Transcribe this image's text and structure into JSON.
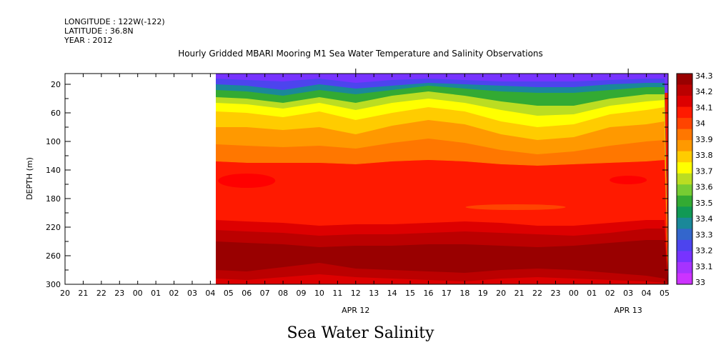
{
  "header": {
    "longitude": "LONGITUDE : 122W(-122)",
    "latitude": "LATITUDE : 36.8N",
    "year": "YEAR : 2012"
  },
  "chart_data": {
    "type": "heatmap",
    "title": "Hourly Gridded MBARI Mooring M1 Sea Water Temperature and Salinity Observations",
    "bottom_title": "Sea Water Salinity",
    "ylabel": "DEPTH (m)",
    "xlabel": "",
    "x_tick_labels": [
      "20",
      "21",
      "22",
      "23",
      "00",
      "01",
      "02",
      "03",
      "04",
      "05",
      "06",
      "07",
      "08",
      "09",
      "10",
      "11",
      "12",
      "13",
      "14",
      "15",
      "16",
      "17",
      "18",
      "19",
      "20",
      "21",
      "22",
      "23",
      "00",
      "01",
      "02",
      "03",
      "04",
      "05"
    ],
    "x_date_labels": [
      {
        "label": "APR 12",
        "at_hour_index": 16
      },
      {
        "label": "APR 13",
        "at_hour_index": 31
      }
    ],
    "y_ticks": [
      20,
      60,
      100,
      140,
      180,
      220,
      260,
      300
    ],
    "ylim": [
      300,
      5
    ],
    "data_start_hour_index": 8.3,
    "colorbar": {
      "levels": [
        33,
        33.1,
        33.2,
        33.3,
        33.4,
        33.5,
        33.6,
        33.7,
        33.8,
        33.9,
        34,
        34.1,
        34.2,
        34.3
      ],
      "labels": [
        "33",
        "33.1",
        "33.2",
        "33.3",
        "33.4",
        "33.5",
        "33.6",
        "33.7",
        "33.8",
        "33.9",
        "34",
        "34.1",
        "34.2",
        "34.3"
      ],
      "colors": [
        "#cc33ff",
        "#a633ff",
        "#7733ff",
        "#4d44ee",
        "#3366cc",
        "#1a8899",
        "#119955",
        "#33aa33",
        "#77cc33",
        "#bbdd22",
        "#ffff00",
        "#ffcc00",
        "#ff9900",
        "#ff7700",
        "#ff4400",
        "#ff1a00",
        "#dd0000",
        "#bb0000",
        "#990000"
      ]
    },
    "contours_depth_m": [
      {
        "level": 33.2,
        "x": [
          8.3,
          10,
          12,
          14,
          16,
          18,
          20,
          22,
          24,
          26,
          28,
          30,
          32,
          33
        ],
        "depth": [
          12,
          14,
          16,
          12,
          18,
          14,
          12,
          14,
          16,
          16,
          16,
          14,
          12,
          12
        ]
      },
      {
        "level": 33.4,
        "x": [
          8.3,
          10,
          12,
          14,
          16,
          18,
          20,
          22,
          24,
          26,
          28,
          30,
          32,
          33
        ],
        "depth": [
          20,
          22,
          28,
          20,
          26,
          22,
          18,
          20,
          22,
          24,
          24,
          20,
          18,
          18
        ]
      },
      {
        "level": 33.6,
        "x": [
          8.3,
          10,
          12,
          14,
          16,
          18,
          20,
          22,
          24,
          26,
          28,
          30,
          32,
          33
        ],
        "depth": [
          28,
          30,
          36,
          28,
          34,
          28,
          22,
          26,
          30,
          32,
          32,
          28,
          24,
          24
        ]
      },
      {
        "level": 33.8,
        "x": [
          8.3,
          10,
          12,
          14,
          16,
          18,
          20,
          22,
          24,
          26,
          28,
          30,
          32,
          33
        ],
        "depth": [
          38,
          40,
          46,
          38,
          46,
          36,
          30,
          36,
          44,
          50,
          50,
          40,
          34,
          34
        ]
      },
      {
        "level": 33.9,
        "x": [
          8.3,
          10,
          12,
          14,
          16,
          18,
          20,
          22,
          24,
          26,
          28,
          30,
          32,
          33
        ],
        "depth": [
          46,
          48,
          54,
          46,
          56,
          46,
          40,
          46,
          56,
          64,
          62,
          50,
          44,
          42
        ]
      },
      {
        "level": 34.0,
        "x": [
          8.3,
          10,
          12,
          14,
          16,
          18,
          20,
          22,
          24,
          26,
          28,
          30,
          32,
          33
        ],
        "depth": [
          58,
          60,
          66,
          58,
          70,
          60,
          52,
          58,
          72,
          80,
          76,
          62,
          56,
          52
        ]
      },
      {
        "level": 34.05,
        "x": [
          8.3,
          10,
          12,
          14,
          16,
          18,
          20,
          22,
          24,
          26,
          28,
          30,
          32,
          33
        ],
        "depth": [
          80,
          80,
          84,
          80,
          90,
          78,
          70,
          76,
          90,
          98,
          94,
          80,
          76,
          72
        ]
      },
      {
        "level": 34.1,
        "x": [
          8.3,
          10,
          12,
          14,
          16,
          18,
          20,
          22,
          24,
          26,
          28,
          30,
          32,
          33
        ],
        "depth": [
          104,
          106,
          108,
          106,
          110,
          102,
          96,
          102,
          112,
          118,
          114,
          106,
          100,
          98
        ]
      },
      {
        "level": 34.15,
        "x": [
          8.3,
          10,
          12,
          14,
          16,
          18,
          20,
          22,
          24,
          26,
          28,
          30,
          32,
          33
        ],
        "depth": [
          128,
          130,
          130,
          130,
          132,
          128,
          126,
          128,
          132,
          134,
          132,
          130,
          128,
          126
        ]
      },
      {
        "level": 34.2,
        "x": [
          8.3,
          10,
          12,
          14,
          16,
          18,
          20,
          22,
          24,
          26,
          28,
          30,
          32,
          33
        ],
        "depth": [
          210,
          212,
          214,
          218,
          216,
          216,
          214,
          212,
          214,
          218,
          218,
          214,
          210,
          210
        ]
      },
      {
        "level": 34.25,
        "x": [
          8.3,
          10,
          12,
          14,
          16,
          18,
          20,
          22,
          24,
          26,
          28,
          30,
          32,
          33
        ],
        "depth": [
          224,
          226,
          228,
          232,
          230,
          230,
          228,
          226,
          228,
          230,
          232,
          228,
          222,
          222
        ]
      },
      {
        "level": 34.3,
        "x": [
          8.3,
          10,
          12,
          14,
          16,
          18,
          20,
          22,
          24,
          26,
          28,
          30,
          32,
          33
        ],
        "depth": [
          240,
          242,
          244,
          248,
          246,
          246,
          244,
          244,
          246,
          248,
          246,
          242,
          238,
          238
        ]
      }
    ],
    "deep_bands_depth_m": [
      {
        "level": 34.25,
        "x": [
          8.3,
          10,
          12,
          14,
          16,
          18,
          20,
          22,
          24,
          26,
          28,
          30,
          32,
          33
        ],
        "depth": [
          280,
          282,
          276,
          270,
          278,
          280,
          282,
          284,
          280,
          278,
          280,
          284,
          288,
          292
        ]
      },
      {
        "level": 34.2,
        "x": [
          8.3,
          10,
          12,
          14,
          16,
          18,
          20,
          22,
          24,
          26,
          28,
          30,
          32,
          33
        ],
        "depth": [
          292,
          294,
          290,
          286,
          290,
          292,
          294,
          296,
          292,
          290,
          292,
          294,
          296,
          298
        ]
      }
    ]
  }
}
